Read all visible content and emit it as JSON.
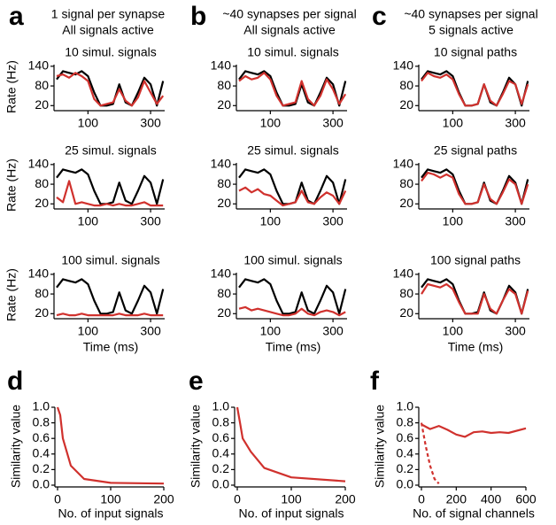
{
  "headers": [
    {
      "letter": "a",
      "lines": [
        "1 signal per synapse",
        "All signals active"
      ]
    },
    {
      "letter": "b",
      "lines": [
        "~40 synapses per signal",
        "All signals active"
      ]
    },
    {
      "letter": "c",
      "lines": [
        "~40 synapses per signal",
        "5 signals active"
      ]
    }
  ],
  "bottom_letters": [
    "d",
    "e",
    "f"
  ],
  "chart_data": [
    {
      "type": "line",
      "title": "10 simul. signals",
      "ylabel": "Rate (Hz)",
      "x": [
        0,
        20,
        40,
        60,
        80,
        100,
        120,
        140,
        160,
        180,
        200,
        220,
        240,
        260,
        280,
        300,
        320,
        340
      ],
      "xlim": [
        0,
        345
      ],
      "ylim": [
        10,
        145
      ],
      "xticks": [
        100,
        300
      ],
      "yticks": [
        20,
        80,
        140
      ],
      "series": [
        {
          "color": "#000000",
          "values": [
            100,
            125,
            120,
            115,
            125,
            110,
            60,
            20,
            20,
            25,
            85,
            30,
            20,
            60,
            105,
            85,
            20,
            95
          ]
        },
        {
          "color": "#d0312d",
          "values": [
            110,
            115,
            105,
            120,
            110,
            95,
            40,
            20,
            25,
            30,
            70,
            35,
            20,
            45,
            95,
            60,
            25,
            50
          ]
        }
      ]
    },
    {
      "type": "line",
      "title": "10 simul. signals",
      "x": [
        0,
        20,
        40,
        60,
        80,
        100,
        120,
        140,
        160,
        180,
        200,
        220,
        240,
        260,
        280,
        300,
        320,
        340
      ],
      "xlim": [
        0,
        345
      ],
      "ylim": [
        10,
        145
      ],
      "xticks": [
        100,
        300
      ],
      "yticks": [
        20,
        80,
        140
      ],
      "series": [
        {
          "color": "#000000",
          "values": [
            100,
            125,
            120,
            115,
            125,
            110,
            60,
            20,
            20,
            25,
            85,
            30,
            20,
            60,
            105,
            85,
            20,
            95
          ]
        },
        {
          "color": "#d0312d",
          "values": [
            95,
            110,
            100,
            105,
            120,
            100,
            50,
            20,
            25,
            30,
            95,
            40,
            20,
            50,
            100,
            70,
            25,
            55
          ]
        }
      ]
    },
    {
      "type": "line",
      "title": "10 signal paths",
      "x": [
        0,
        20,
        40,
        60,
        80,
        100,
        120,
        140,
        160,
        180,
        200,
        220,
        240,
        260,
        280,
        300,
        320,
        340
      ],
      "xlim": [
        0,
        345
      ],
      "ylim": [
        10,
        145
      ],
      "xticks": [
        100,
        300
      ],
      "yticks": [
        20,
        80,
        140
      ],
      "series": [
        {
          "color": "#000000",
          "values": [
            100,
            125,
            120,
            115,
            125,
            110,
            60,
            20,
            20,
            25,
            85,
            30,
            20,
            60,
            105,
            85,
            20,
            95
          ]
        },
        {
          "color": "#d0312d",
          "values": [
            95,
            120,
            110,
            105,
            115,
            100,
            55,
            20,
            20,
            25,
            85,
            35,
            20,
            55,
            95,
            85,
            25,
            85
          ]
        }
      ]
    },
    {
      "type": "line",
      "title": "25 simul. signals",
      "ylabel": "Rate (Hz)",
      "x": [
        0,
        20,
        40,
        60,
        80,
        100,
        120,
        140,
        160,
        180,
        200,
        220,
        240,
        260,
        280,
        300,
        320,
        340
      ],
      "xlim": [
        0,
        345
      ],
      "ylim": [
        10,
        145
      ],
      "xticks": [
        100,
        300
      ],
      "yticks": [
        20,
        80,
        140
      ],
      "series": [
        {
          "color": "#000000",
          "values": [
            100,
            125,
            120,
            115,
            125,
            110,
            60,
            20,
            20,
            25,
            85,
            30,
            20,
            60,
            105,
            85,
            20,
            95
          ]
        },
        {
          "color": "#d0312d",
          "values": [
            40,
            25,
            90,
            20,
            25,
            20,
            15,
            15,
            20,
            15,
            20,
            15,
            15,
            20,
            25,
            15,
            15,
            15
          ]
        }
      ]
    },
    {
      "type": "line",
      "title": "25 simul. signals",
      "x": [
        0,
        20,
        40,
        60,
        80,
        100,
        120,
        140,
        160,
        180,
        200,
        220,
        240,
        260,
        280,
        300,
        320,
        340
      ],
      "xlim": [
        0,
        345
      ],
      "ylim": [
        10,
        145
      ],
      "xticks": [
        100,
        300
      ],
      "yticks": [
        20,
        80,
        140
      ],
      "series": [
        {
          "color": "#000000",
          "values": [
            100,
            125,
            120,
            115,
            125,
            110,
            60,
            20,
            20,
            25,
            85,
            30,
            20,
            60,
            105,
            85,
            20,
            95
          ]
        },
        {
          "color": "#d0312d",
          "values": [
            60,
            70,
            55,
            65,
            50,
            45,
            30,
            15,
            20,
            25,
            60,
            25,
            20,
            40,
            55,
            45,
            20,
            60
          ]
        }
      ]
    },
    {
      "type": "line",
      "title": "25 signal paths",
      "x": [
        0,
        20,
        40,
        60,
        80,
        100,
        120,
        140,
        160,
        180,
        200,
        220,
        240,
        260,
        280,
        300,
        320,
        340
      ],
      "xlim": [
        0,
        345
      ],
      "ylim": [
        10,
        145
      ],
      "xticks": [
        100,
        300
      ],
      "yticks": [
        20,
        80,
        140
      ],
      "series": [
        {
          "color": "#000000",
          "values": [
            100,
            125,
            120,
            115,
            125,
            110,
            60,
            20,
            20,
            25,
            85,
            30,
            20,
            60,
            105,
            85,
            20,
            95
          ]
        },
        {
          "color": "#d0312d",
          "values": [
            90,
            115,
            110,
            100,
            110,
            100,
            50,
            20,
            20,
            25,
            80,
            35,
            20,
            55,
            95,
            80,
            20,
            80
          ]
        }
      ]
    },
    {
      "type": "line",
      "title": "100 simul. signals",
      "ylabel": "Rate (Hz)",
      "xlabel": "Time (ms)",
      "x": [
        0,
        20,
        40,
        60,
        80,
        100,
        120,
        140,
        160,
        180,
        200,
        220,
        240,
        260,
        280,
        300,
        320,
        340
      ],
      "xlim": [
        0,
        345
      ],
      "ylim": [
        10,
        145
      ],
      "xticks": [
        100,
        300
      ],
      "yticks": [
        20,
        80,
        140
      ],
      "series": [
        {
          "color": "#000000",
          "values": [
            100,
            125,
            120,
            115,
            125,
            110,
            60,
            20,
            20,
            25,
            85,
            30,
            20,
            60,
            105,
            85,
            20,
            95
          ]
        },
        {
          "color": "#d0312d",
          "values": [
            15,
            20,
            15,
            15,
            20,
            15,
            15,
            15,
            15,
            15,
            20,
            15,
            15,
            15,
            20,
            15,
            15,
            15
          ]
        }
      ]
    },
    {
      "type": "line",
      "title": "100 simul. signals",
      "xlabel": "Time (ms)",
      "x": [
        0,
        20,
        40,
        60,
        80,
        100,
        120,
        140,
        160,
        180,
        200,
        220,
        240,
        260,
        280,
        300,
        320,
        340
      ],
      "xlim": [
        0,
        345
      ],
      "ylim": [
        10,
        145
      ],
      "xticks": [
        100,
        300
      ],
      "yticks": [
        20,
        80,
        140
      ],
      "series": [
        {
          "color": "#000000",
          "values": [
            100,
            125,
            120,
            115,
            125,
            110,
            60,
            20,
            20,
            25,
            85,
            30,
            20,
            60,
            105,
            85,
            20,
            95
          ]
        },
        {
          "color": "#d0312d",
          "values": [
            35,
            40,
            30,
            35,
            30,
            25,
            20,
            15,
            15,
            20,
            35,
            20,
            15,
            25,
            30,
            25,
            15,
            25
          ]
        }
      ]
    },
    {
      "type": "line",
      "title": "100 signal paths",
      "xlabel": "Time (ms)",
      "x": [
        0,
        20,
        40,
        60,
        80,
        100,
        120,
        140,
        160,
        180,
        200,
        220,
        240,
        260,
        280,
        300,
        320,
        340
      ],
      "xlim": [
        0,
        345
      ],
      "ylim": [
        10,
        145
      ],
      "xticks": [
        100,
        300
      ],
      "yticks": [
        20,
        80,
        140
      ],
      "series": [
        {
          "color": "#000000",
          "values": [
            100,
            125,
            120,
            115,
            125,
            110,
            60,
            20,
            20,
            25,
            85,
            30,
            20,
            60,
            105,
            85,
            20,
            95
          ]
        },
        {
          "color": "#d0312d",
          "values": [
            80,
            110,
            105,
            100,
            110,
            95,
            55,
            20,
            20,
            20,
            80,
            35,
            20,
            60,
            95,
            80,
            20,
            90
          ]
        }
      ]
    },
    {
      "type": "xyline",
      "ylabel": "Similarity value",
      "xlabel": "No. of input signals",
      "xlim": [
        0,
        200
      ],
      "ylim": [
        0,
        1.0
      ],
      "xticks": [
        0,
        100,
        200
      ],
      "yticks": [
        {
          "value": 0,
          "label": "0.0"
        },
        0.2,
        0.4,
        0.6,
        0.8,
        {
          "value": 1,
          "label": "1.0"
        }
      ],
      "series": [
        {
          "color": "#d0312d",
          "x": [
            0,
            5,
            10,
            25,
            50,
            100,
            200
          ],
          "values": [
            1.0,
            0.9,
            0.6,
            0.25,
            0.08,
            0.03,
            0.02
          ]
        }
      ]
    },
    {
      "type": "xyline",
      "ylabel": "Similarity value",
      "xlabel": "No. of input signals",
      "xlim": [
        0,
        200
      ],
      "ylim": [
        0,
        1.0
      ],
      "xticks": [
        0,
        100,
        200
      ],
      "yticks": [
        {
          "value": 0,
          "label": "0.0"
        },
        0.2,
        0.4,
        0.6,
        0.8,
        {
          "value": 1,
          "label": "1.0"
        }
      ],
      "series": [
        {
          "color": "#d0312d",
          "x": [
            0,
            5,
            10,
            25,
            50,
            100,
            200
          ],
          "values": [
            1.0,
            0.8,
            0.6,
            0.43,
            0.22,
            0.1,
            0.05
          ]
        }
      ]
    },
    {
      "type": "xyline",
      "ylabel": "Similarity value",
      "xlabel": "No. of signal channels",
      "xlim": [
        0,
        600
      ],
      "ylim": [
        0,
        1.0
      ],
      "xticks": [
        0,
        200,
        400,
        600
      ],
      "yticks": [
        {
          "value": 0,
          "label": "0.0"
        },
        0.2,
        0.4,
        0.6,
        0.8,
        {
          "value": 1,
          "label": "1.0"
        }
      ],
      "series": [
        {
          "color": "#d0312d",
          "x": [
            0,
            50,
            100,
            150,
            200,
            250,
            300,
            350,
            400,
            450,
            500,
            600
          ],
          "values": [
            0.78,
            0.72,
            0.76,
            0.71,
            0.65,
            0.62,
            0.68,
            0.69,
            0.67,
            0.68,
            0.67,
            0.73
          ]
        },
        {
          "color": "#d0312d",
          "dashed": true,
          "x": [
            0,
            25,
            50,
            75,
            100
          ],
          "values": [
            0.8,
            0.5,
            0.25,
            0.08,
            0.02
          ]
        }
      ]
    }
  ]
}
